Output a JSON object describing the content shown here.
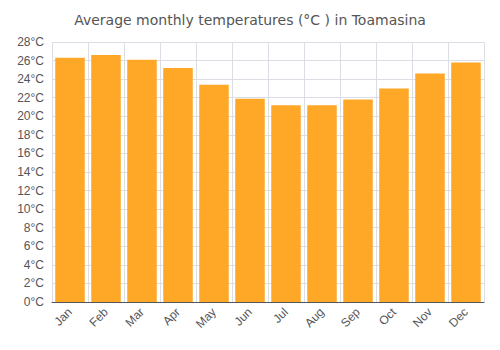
{
  "chart_data": {
    "type": "bar",
    "title": "Average monthly temperatures (°C ) in Toamasina",
    "categories": [
      "Jan",
      "Feb",
      "Mar",
      "Apr",
      "May",
      "Jun",
      "Jul",
      "Aug",
      "Sep",
      "Oct",
      "Nov",
      "Dec"
    ],
    "values": [
      26.3,
      26.6,
      26.1,
      25.2,
      23.4,
      21.9,
      21.2,
      21.2,
      21.8,
      23.0,
      24.6,
      25.8
    ],
    "color": "#FFA726",
    "ylim": [
      0,
      28
    ],
    "yticks": [
      {
        "value": 0,
        "label": "0°C"
      },
      {
        "value": 2,
        "label": "2°C"
      },
      {
        "value": 4,
        "label": "4°C"
      },
      {
        "value": 6,
        "label": "6°C"
      },
      {
        "value": 8,
        "label": "8°C"
      },
      {
        "value": 10,
        "label": "10°C"
      },
      {
        "value": 12,
        "label": "12°C"
      },
      {
        "value": 14,
        "label": "14°C"
      },
      {
        "value": 16,
        "label": "16°C"
      },
      {
        "value": 18,
        "label": "18°C"
      },
      {
        "value": 20,
        "label": "20°C"
      },
      {
        "value": 22,
        "label": "22°C"
      },
      {
        "value": 24,
        "label": "24°C"
      },
      {
        "value": 26,
        "label": "26°C"
      },
      {
        "value": 28,
        "label": "28°C"
      }
    ],
    "grid": true
  }
}
